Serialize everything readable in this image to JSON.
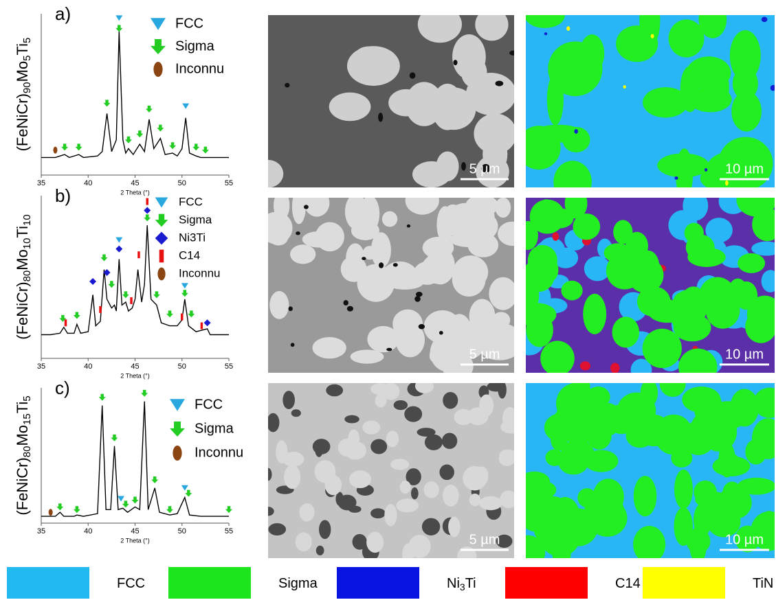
{
  "chart_data": [
    {
      "type": "line",
      "title": "a)",
      "ylabel": [
        "(FeNiCr)",
        "90",
        "Mo",
        "5",
        "Ti",
        "5"
      ],
      "xlabel": "2 Theta (°)",
      "xlim": [
        35,
        55
      ],
      "xticks": [
        35,
        40,
        45,
        50,
        55
      ],
      "ylim": [
        -10,
        100
      ],
      "color": "#000000",
      "x": [
        35,
        36.5,
        37,
        37.5,
        38,
        39,
        39.5,
        41,
        41.5,
        42,
        42.5,
        43,
        43.3,
        43.7,
        44,
        44.3,
        44.8,
        45.5,
        46,
        46.5,
        47,
        47.7,
        48.2,
        49,
        49.5,
        50,
        50.4,
        50.8,
        51.5,
        52,
        55
      ],
      "values": [
        2,
        2,
        3,
        4,
        2,
        4,
        2,
        3,
        6,
        32,
        6,
        14,
        88,
        14,
        5,
        8,
        4,
        11,
        6,
        28,
        8,
        15,
        4,
        5,
        3,
        8,
        29,
        5,
        3,
        2,
        2
      ],
      "markers": [
        {
          "name": "FCC",
          "shape": "triangle",
          "color": "#29a8e0",
          "x": [
            43.3,
            50.4
          ],
          "values": [
            97,
            37
          ]
        },
        {
          "name": "Sigma",
          "shape": "arrow",
          "color": "#22cc22",
          "x": [
            37.5,
            39,
            42,
            43.3,
            44.3,
            45.5,
            46.5,
            47.7,
            49,
            51.5,
            52.5
          ],
          "values": [
            9,
            9,
            39,
            90,
            14,
            18,
            35,
            22,
            10,
            9,
            7
          ]
        },
        {
          "name": "Inconnu",
          "shape": "ellipse",
          "color": "#8b4513",
          "x": [
            36.5
          ],
          "values": [
            7
          ]
        }
      ]
    },
    {
      "type": "line",
      "title": "b)",
      "ylabel": [
        "(FeNiCr)",
        "80",
        "Mo",
        "10",
        "Ti",
        "10"
      ],
      "xlabel": "2 Theta (°)",
      "xlim": [
        35,
        55
      ],
      "xticks": [
        35,
        40,
        45,
        50,
        55
      ],
      "ylim": [
        0,
        110
      ],
      "color": "#000000",
      "x": [
        35,
        36,
        37,
        37.4,
        37.8,
        38.5,
        38.8,
        39.2,
        40,
        40.5,
        40.8,
        41.3,
        41.7,
        42,
        42.5,
        42.8,
        43,
        43.3,
        43.6,
        44,
        44.3,
        44.7,
        45,
        45.3,
        45.7,
        46,
        46.3,
        46.7,
        47.3,
        47.8,
        48.7,
        49.5,
        50,
        50.3,
        50.7,
        51.5,
        52.7,
        53,
        55
      ],
      "values": [
        16,
        16,
        17,
        21,
        17,
        17,
        23,
        17,
        18,
        43,
        22,
        25,
        60,
        40,
        34,
        36,
        32,
        67,
        36,
        38,
        32,
        34,
        40,
        60,
        38,
        50,
        90,
        40,
        36,
        24,
        22,
        22,
        26,
        40,
        22,
        18,
        20,
        16,
        16
      ],
      "markers": [
        {
          "name": "FCC",
          "shape": "triangle",
          "color": "#29a8e0",
          "x": [
            43.3,
            50.3
          ],
          "values": [
            80,
            49
          ]
        },
        {
          "name": "Sigma",
          "shape": "arrow",
          "color": "#22cc22",
          "x": [
            37.3,
            38.8,
            41.7,
            42.5,
            44,
            46.3,
            47.3,
            48.7,
            50.3,
            51
          ],
          "values": [
            27,
            29,
            68,
            50,
            43,
            95,
            43,
            30,
            44,
            30
          ]
        },
        {
          "name": "Ni3Ti",
          "shape": "diamond",
          "color": "#1a1ad0",
          "x": [
            40.5,
            42,
            43.3,
            46.3,
            52.7
          ],
          "values": [
            52,
            58,
            74,
            100,
            24
          ]
        },
        {
          "name": "C14",
          "shape": "bar",
          "color": "#e81010",
          "x": [
            37.6,
            41.3,
            44.6,
            45.4,
            46.3,
            50,
            52.1
          ],
          "values": [
            24,
            33,
            39,
            70,
            106,
            28,
            22
          ]
        },
        {
          "name": "Inconnu",
          "shape": "ellipse",
          "color": "#8b4513",
          "x": [],
          "values": []
        }
      ]
    },
    {
      "type": "line",
      "title": "c)",
      "ylabel": [
        "(FeNiCr)",
        "80",
        "Mo",
        "15",
        "Ti",
        "5"
      ],
      "xlabel": "2 Theta (°)",
      "xlim": [
        35,
        55
      ],
      "xticks": [
        35,
        40,
        45,
        50,
        55
      ],
      "ylim": [
        0,
        100
      ],
      "color": "#000000",
      "x": [
        35,
        36.5,
        37,
        37.4,
        38.5,
        38.8,
        39.5,
        41,
        41.5,
        41.9,
        42.4,
        42.8,
        43.2,
        43.7,
        44.2,
        45,
        45.5,
        46,
        46.4,
        47.1,
        47.6,
        48.7,
        49.5,
        50.3,
        50.8,
        52,
        55
      ],
      "values": [
        5,
        5,
        8,
        5,
        5,
        6,
        5,
        7,
        87,
        10,
        10,
        57,
        10,
        11,
        8,
        12,
        10,
        90,
        10,
        26,
        8,
        6,
        7,
        19,
        6,
        5,
        5
      ],
      "markers": [
        {
          "name": "FCC",
          "shape": "triangle",
          "color": "#29a8e0",
          "x": [
            43.5,
            50.3
          ],
          "values": [
            18,
            26
          ]
        },
        {
          "name": "Sigma",
          "shape": "arrow",
          "color": "#22cc22",
          "x": [
            37,
            38.8,
            41.5,
            42.8,
            44,
            45,
            46,
            47.1,
            48.7,
            50.7,
            55
          ],
          "values": [
            12,
            10,
            93,
            63,
            14,
            17,
            96,
            32,
            10,
            22,
            10
          ]
        },
        {
          "name": "Inconnu",
          "shape": "ellipse",
          "color": "#8b4513",
          "x": [
            36
          ],
          "values": [
            8
          ]
        }
      ]
    }
  ],
  "micrographs": [
    [
      "5 µm",
      "10 µm"
    ],
    [
      "5 µm",
      "10 µm"
    ],
    [
      "5 µm",
      "10 µm"
    ]
  ],
  "phase_legend": [
    {
      "name": [
        "FCC"
      ],
      "color": "#22b8f0"
    },
    {
      "name": [
        "Sigma"
      ],
      "color": "#1de51d"
    },
    {
      "name": [
        "Ni",
        "3",
        "Ti"
      ],
      "color": "#0a14e0"
    },
    {
      "name": [
        "C14"
      ],
      "color": "#ff0000"
    },
    {
      "name": [
        "TiN"
      ],
      "color": "#ffff00"
    }
  ]
}
